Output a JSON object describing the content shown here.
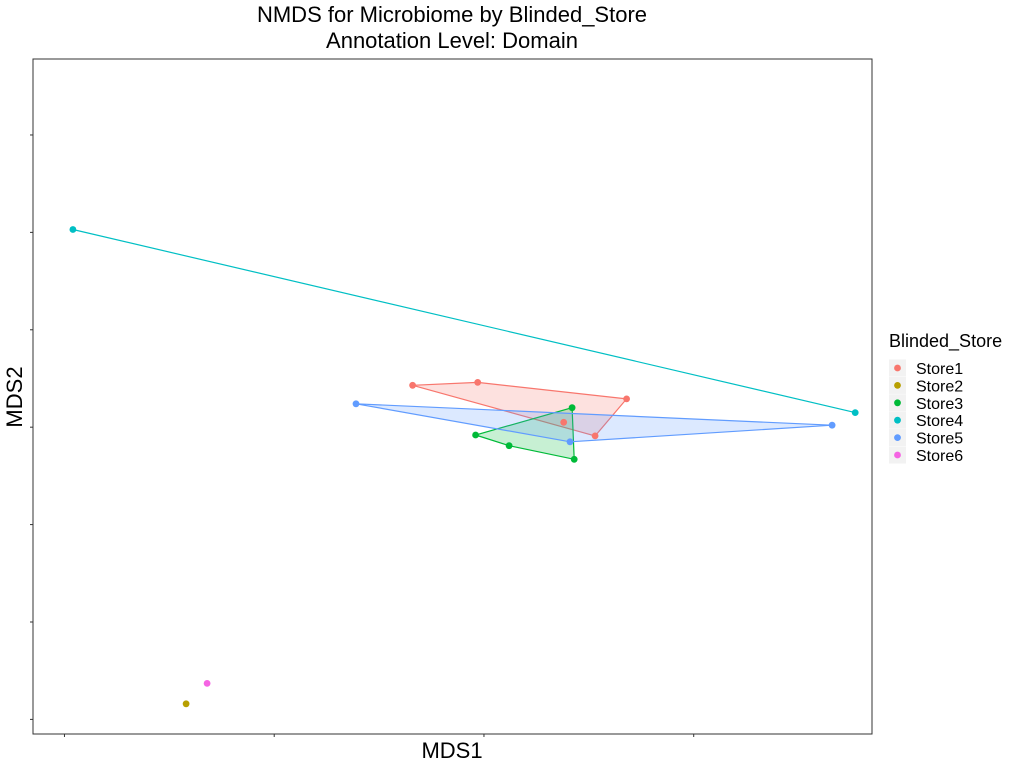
{
  "chart_data": {
    "type": "scatter",
    "title": "NMDS for Microbiome by Blinded_Store",
    "subtitle": "Annotation Level: Domain",
    "xlabel": "MDS1",
    "ylabel": "MDS2",
    "xlim": [
      -0.15,
      3.85
    ],
    "ylim": [
      -3.15,
      3.78
    ],
    "x_ticks": [
      0,
      1,
      2,
      3
    ],
    "y_ticks": [
      -3,
      -2,
      -1,
      0,
      1,
      2,
      3
    ],
    "grid": false,
    "legend": {
      "title": "Blinded_Store",
      "position": "right"
    },
    "series": [
      {
        "name": "Store1",
        "color": "#F8766D",
        "hull": true,
        "points": [
          [
            1.66,
            0.43
          ],
          [
            1.97,
            0.46
          ],
          [
            2.68,
            0.29
          ],
          [
            2.53,
            -0.09
          ],
          [
            2.38,
            0.05
          ]
        ]
      },
      {
        "name": "Store2",
        "color": "#B79F00",
        "hull": false,
        "points": [
          [
            0.58,
            -2.84
          ]
        ]
      },
      {
        "name": "Store3",
        "color": "#00BA38",
        "hull": true,
        "points": [
          [
            1.96,
            -0.08
          ],
          [
            2.12,
            -0.19
          ],
          [
            2.42,
            0.2
          ],
          [
            2.43,
            -0.33
          ]
        ]
      },
      {
        "name": "Store4",
        "color": "#00BFC4",
        "hull": true,
        "points": [
          [
            0.04,
            2.03
          ],
          [
            3.77,
            0.15
          ]
        ]
      },
      {
        "name": "Store5",
        "color": "#619CFF",
        "hull": true,
        "points": [
          [
            1.39,
            0.24
          ],
          [
            2.41,
            -0.15
          ],
          [
            3.66,
            0.02
          ]
        ]
      },
      {
        "name": "Store6",
        "color": "#F564E3",
        "hull": false,
        "points": [
          [
            0.68,
            -2.63
          ]
        ]
      }
    ]
  }
}
